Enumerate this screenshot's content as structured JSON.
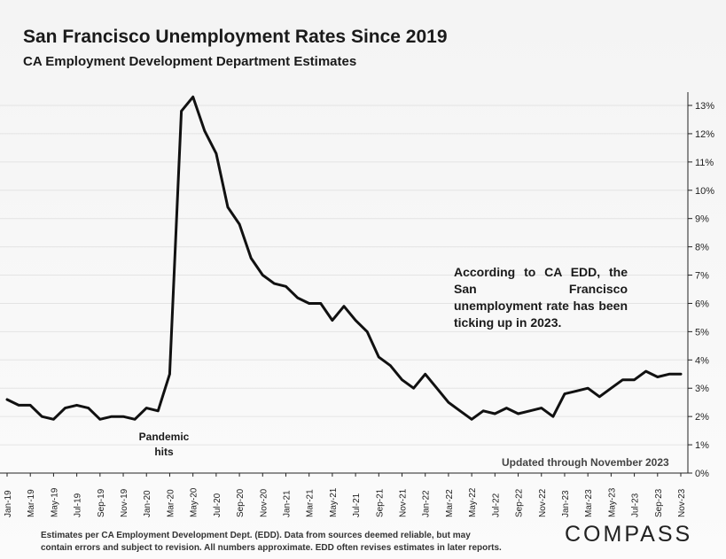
{
  "title": "San Francisco Unemployment Rates Since 2019",
  "subtitle": "CA Employment Development Department Estimates",
  "annotation": "According to CA EDD, the San Francisco unemployment rate has been ticking up in 2023.",
  "pandemic_label_line1": "Pandemic",
  "pandemic_label_line2": "hits",
  "updated_note": "Updated through November 2023",
  "footnote_line1": "Estimates per CA Employment Development Dept. (EDD). Data from sources deemed reliable, but may",
  "footnote_line2": "contain errors and subject to revision. All numbers approximate.  EDD often revises estimates in later reports.",
  "logo": "COMPASS",
  "colors": {
    "line": "#111111",
    "grid": "#ffffff",
    "axis": "#222222"
  },
  "chart_data": {
    "type": "line",
    "title": "San Francisco Unemployment Rates Since 2019",
    "subtitle": "CA Employment Development Department Estimates",
    "xlabel": "",
    "ylabel": "",
    "ylim": [
      0,
      13
    ],
    "y_ticks": [
      "0%",
      "1%",
      "2%",
      "3%",
      "4%",
      "5%",
      "6%",
      "7%",
      "8%",
      "9%",
      "10%",
      "11%",
      "12%",
      "13%"
    ],
    "y_axis_side": "right",
    "grid": true,
    "x_tick_labels": [
      "Jan-19",
      "Mar-19",
      "May-19",
      "Jul-19",
      "Sep-19",
      "Nov-19",
      "Jan-20",
      "Mar-20",
      "May-20",
      "Jul-20",
      "Sep-20",
      "Nov-20",
      "Jan-21",
      "Mar-21",
      "May-21",
      "Jul-21",
      "Sep-21",
      "Nov-21",
      "Jan-22",
      "Mar-22",
      "May-22",
      "Jul-22",
      "Sep-22",
      "Nov-22",
      "Jan-23",
      "Mar-23",
      "May-23",
      "Jul-23",
      "Sep-23",
      "Nov-23"
    ],
    "categories": [
      "Jan-19",
      "Feb-19",
      "Mar-19",
      "Apr-19",
      "May-19",
      "Jun-19",
      "Jul-19",
      "Aug-19",
      "Sep-19",
      "Oct-19",
      "Nov-19",
      "Dec-19",
      "Jan-20",
      "Feb-20",
      "Mar-20",
      "Apr-20",
      "May-20",
      "Jun-20",
      "Jul-20",
      "Aug-20",
      "Sep-20",
      "Oct-20",
      "Nov-20",
      "Dec-20",
      "Jan-21",
      "Feb-21",
      "Mar-21",
      "Apr-21",
      "May-21",
      "Jun-21",
      "Jul-21",
      "Aug-21",
      "Sep-21",
      "Oct-21",
      "Nov-21",
      "Dec-21",
      "Jan-22",
      "Feb-22",
      "Mar-22",
      "Apr-22",
      "May-22",
      "Jun-22",
      "Jul-22",
      "Aug-22",
      "Sep-22",
      "Oct-22",
      "Nov-22",
      "Dec-22",
      "Jan-23",
      "Feb-23",
      "Mar-23",
      "Apr-23",
      "May-23",
      "Jun-23",
      "Jul-23",
      "Aug-23",
      "Sep-23",
      "Oct-23",
      "Nov-23"
    ],
    "series": [
      {
        "name": "San Francisco Unemployment Rate (%)",
        "values": [
          2.6,
          2.4,
          2.4,
          2.0,
          1.9,
          2.3,
          2.4,
          2.3,
          1.9,
          2.0,
          2.0,
          1.9,
          2.3,
          2.2,
          3.5,
          12.8,
          13.3,
          12.1,
          11.3,
          9.4,
          8.8,
          7.6,
          7.0,
          6.7,
          6.6,
          6.2,
          6.0,
          6.0,
          5.4,
          5.9,
          5.4,
          5.0,
          4.1,
          3.8,
          3.3,
          3.0,
          3.5,
          3.0,
          2.5,
          2.2,
          1.9,
          2.2,
          2.1,
          2.3,
          2.1,
          2.2,
          2.3,
          2.0,
          2.8,
          2.9,
          3.0,
          2.7,
          3.0,
          3.3,
          3.3,
          3.6,
          3.4,
          3.5,
          3.5
        ]
      }
    ]
  }
}
